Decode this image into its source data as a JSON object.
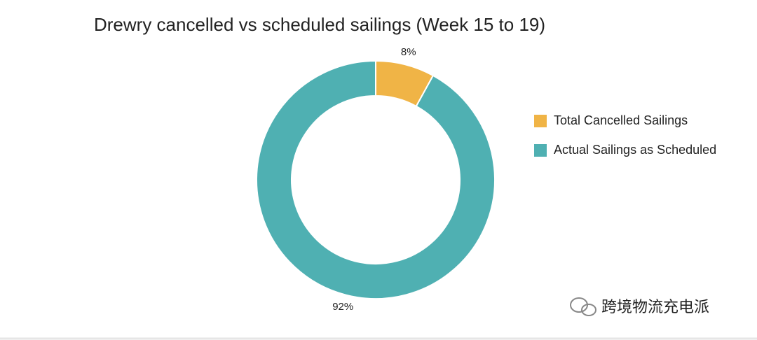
{
  "chart_data": {
    "type": "donut",
    "title": "Drewry cancelled vs scheduled sailings (Week 15 to 19)",
    "categories": [
      "Total Cancelled Sailings",
      "Actual Sailings as Scheduled"
    ],
    "values": [
      8,
      92
    ],
    "value_labels": [
      "8%",
      "92%"
    ],
    "colors": [
      "#f0b446",
      "#4fb0b2"
    ],
    "legend": "right"
  },
  "watermark": "跨境物流充电派"
}
